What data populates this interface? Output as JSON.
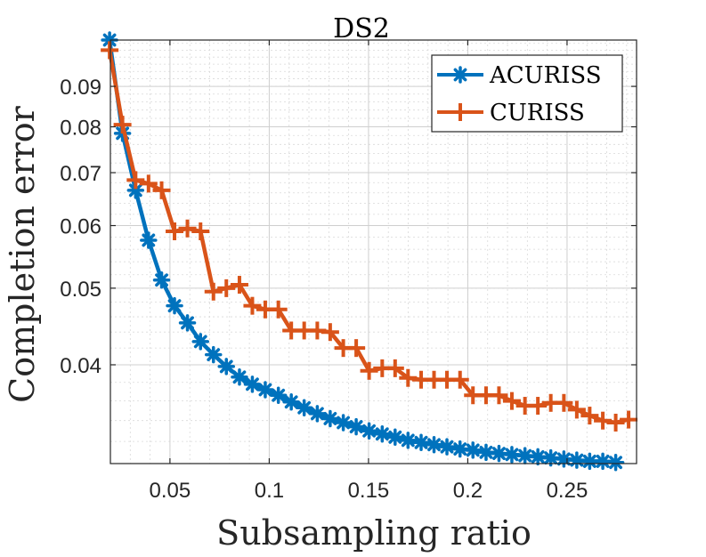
{
  "chart_data": {
    "type": "line",
    "title": "DS2",
    "xlabel": "Subsampling ratio",
    "ylabel": "Completion error",
    "xlim": [
      0.02,
      0.285
    ],
    "ylim": [
      0.03,
      0.103
    ],
    "yscale": "log",
    "grid": true,
    "minor_grid": true,
    "legend_position": "top-right",
    "xticks": [
      0.05,
      0.1,
      0.15,
      0.2,
      0.25
    ],
    "xtick_labels": [
      "0.05",
      "0.1",
      "0.15",
      "0.2",
      "0.25"
    ],
    "yticks": [
      0.04,
      0.05,
      0.06,
      0.07,
      0.08,
      0.09
    ],
    "ytick_labels": [
      "0.04",
      "0.05",
      "0.06",
      "0.07",
      "0.08",
      "0.09"
    ],
    "series": [
      {
        "name": "ACURISS",
        "color": "#0072BD",
        "marker": "asterisk",
        "x": [
          0.0196,
          0.0261,
          0.0327,
          0.0392,
          0.0458,
          0.0523,
          0.0588,
          0.0654,
          0.0719,
          0.0784,
          0.085,
          0.0915,
          0.098,
          0.1046,
          0.1111,
          0.1176,
          0.1242,
          0.1307,
          0.1373,
          0.1438,
          0.1503,
          0.1569,
          0.1634,
          0.1699,
          0.1765,
          0.183,
          0.1895,
          0.1961,
          0.2026,
          0.2092,
          0.2157,
          0.2222,
          0.2288,
          0.2353,
          0.2418,
          0.2484,
          0.2549,
          0.2614,
          0.268,
          0.2745
        ],
        "y": [
          0.103,
          0.0785,
          0.0665,
          0.0575,
          0.0512,
          0.0475,
          0.0452,
          0.0428,
          0.0412,
          0.0398,
          0.0386,
          0.0378,
          0.0372,
          0.0366,
          0.0359,
          0.0353,
          0.0347,
          0.0342,
          0.0338,
          0.0334,
          0.033,
          0.0327,
          0.0324,
          0.0321,
          0.0319,
          0.0317,
          0.0315,
          0.0313,
          0.0312,
          0.031,
          0.0309,
          0.0308,
          0.0307,
          0.0306,
          0.0305,
          0.0304,
          0.0303,
          0.0302,
          0.0302,
          0.0301
        ]
      },
      {
        "name": "CURISS",
        "color": "#D95319",
        "marker": "plus",
        "x": [
          0.0196,
          0.0261,
          0.0327,
          0.0392,
          0.0458,
          0.0523,
          0.0588,
          0.0654,
          0.0719,
          0.0784,
          0.085,
          0.0915,
          0.098,
          0.1046,
          0.1111,
          0.1176,
          0.1242,
          0.1307,
          0.1373,
          0.1438,
          0.1503,
          0.1569,
          0.1634,
          0.1699,
          0.1765,
          0.183,
          0.1895,
          0.1961,
          0.2026,
          0.2092,
          0.2157,
          0.2222,
          0.2288,
          0.2353,
          0.2418,
          0.2484,
          0.2549,
          0.2614,
          0.268,
          0.2745,
          0.281
        ],
        "y": [
          0.1,
          0.0805,
          0.0685,
          0.0678,
          0.0665,
          0.059,
          0.0595,
          0.059,
          0.0495,
          0.05,
          0.0505,
          0.0475,
          0.047,
          0.047,
          0.0442,
          0.0442,
          0.0442,
          0.044,
          0.042,
          0.042,
          0.0393,
          0.0396,
          0.0396,
          0.0385,
          0.0383,
          0.0383,
          0.0383,
          0.0383,
          0.0366,
          0.0366,
          0.0366,
          0.036,
          0.0355,
          0.0355,
          0.0358,
          0.0358,
          0.0351,
          0.0345,
          0.034,
          0.0338,
          0.0341
        ]
      }
    ]
  }
}
